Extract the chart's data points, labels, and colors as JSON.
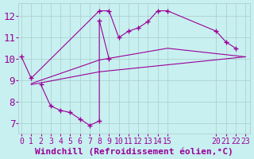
{
  "xlabel": "Windchill (Refroidissement éolien,°C)",
  "bg_color": "#c8f0f0",
  "line_color": "#990099",
  "xticks": [
    0,
    1,
    2,
    3,
    4,
    5,
    6,
    7,
    8,
    9,
    10,
    11,
    12,
    13,
    14,
    15,
    20,
    21,
    22,
    23
  ],
  "xtick_labels": [
    "0",
    "1",
    "2",
    "3",
    "4",
    "5",
    "6",
    "7",
    "8",
    "9",
    "10",
    "11",
    "12",
    "13",
    "14",
    "15",
    "20",
    "21",
    "22",
    "23"
  ],
  "yticks": [
    7,
    8,
    9,
    10,
    11,
    12
  ],
  "xlim": [
    -0.3,
    23.5
  ],
  "ylim": [
    6.5,
    12.6
  ],
  "series1": [
    [
      0,
      10.1
    ],
    [
      1,
      9.1
    ],
    [
      8,
      12.25
    ],
    [
      9,
      12.25
    ],
    [
      10,
      11.0
    ],
    [
      11,
      11.3
    ],
    [
      12,
      11.45
    ],
    [
      13,
      11.75
    ],
    [
      14,
      12.25
    ],
    [
      15,
      12.25
    ],
    [
      20,
      11.3
    ],
    [
      21,
      10.8
    ],
    [
      22,
      10.5
    ]
  ],
  "series2": [
    [
      1,
      8.85
    ],
    [
      8,
      9.95
    ],
    [
      15,
      10.5
    ],
    [
      23,
      10.1
    ]
  ],
  "series3": [
    [
      1,
      8.8
    ],
    [
      8,
      9.4
    ],
    [
      23,
      10.1
    ]
  ],
  "series4": [
    [
      2,
      8.8
    ],
    [
      3,
      7.8
    ],
    [
      4,
      7.6
    ],
    [
      5,
      7.5
    ],
    [
      6,
      7.2
    ],
    [
      7,
      6.9
    ],
    [
      8,
      7.1
    ],
    [
      8,
      11.8
    ],
    [
      9,
      10.0
    ]
  ],
  "grid_color": "#aacccc",
  "tick_label_color": "#990099",
  "xlabel_color": "#990099",
  "xlabel_fontsize": 8,
  "ytick_fontsize": 9,
  "xtick_fontsize": 7
}
